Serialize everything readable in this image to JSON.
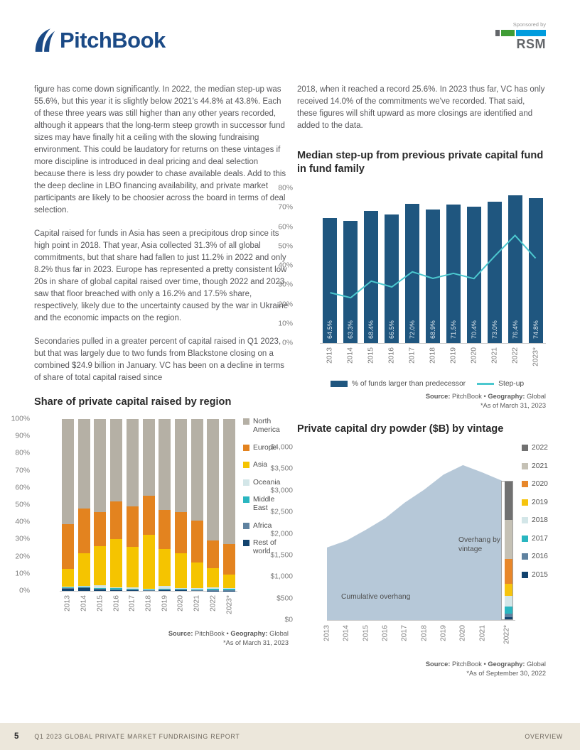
{
  "header": {
    "logo_text": "PitchBook",
    "sponsored_by": "Sponsored by",
    "sponsor_name": "RSM"
  },
  "body": {
    "left_paragraphs": [
      "figure has come down significantly. In 2022, the median step-up was 55.6%, but this year it is slightly below 2021’s 44.8% at 43.8%. Each of these three years was still higher than any other years recorded, although it appears that the long-term steep growth in successor fund sizes may have finally hit a ceiling with the slowing fundraising environment. This could be laudatory for returns on these vintages if more discipline is introduced in deal pricing and deal selection because there is less dry powder to chase available deals. Add to this the deep decline in LBO financing availability, and private market participants are likely to be choosier across the board in terms of deal selection.",
      "Capital raised for funds in Asia has seen a precipitous drop since its high point in 2018. That year, Asia collected 31.3% of all global commitments, but that share had fallen to just 11.2% in 2022 and only 8.2% thus far in 2023. Europe has represented a pretty consistent low 20s in share of global capital raised over time, though 2022 and 2023 saw that floor breached with only a 16.2% and 17.5% share, respectively, likely due to the uncertainty caused by the war in Ukraine and the economic impacts on the region.",
      "Secondaries pulled in a greater percent of capital raised in Q1 2023, but that was largely due to two funds from Blackstone closing on a combined $24.9 billion in January. VC has been on a decline in terms of share of total capital raised since"
    ],
    "right_paragraph": "2018, when it reached a record 25.6%. In 2023 thus far, VC has only received 14.0% of the commitments we've recorded. That said, these figures will shift upward as more closings are identified and added to the data."
  },
  "chart_data": [
    {
      "type": "bar+line",
      "title": "Median step-up from previous private capital fund in fund family",
      "categories": [
        "2013",
        "2014",
        "2015",
        "2016",
        "2017",
        "2018",
        "2019",
        "2020",
        "2021",
        "2022",
        "2023*"
      ],
      "ylim": [
        0,
        80
      ],
      "yticks": [
        "0%",
        "10%",
        "20%",
        "30%",
        "40%",
        "50%",
        "60%",
        "70%",
        "80%"
      ],
      "bar_series": {
        "name": "% of funds larger than predecessor",
        "color": "#1f567f",
        "values": [
          64.5,
          63.3,
          68.4,
          66.5,
          72.0,
          68.9,
          71.5,
          70.4,
          73.0,
          76.4,
          74.8
        ],
        "labels": [
          "64.5%",
          "63.3%",
          "68.4%",
          "66.5%",
          "72.0%",
          "68.9%",
          "71.5%",
          "70.4%",
          "73.0%",
          "76.4%",
          "74.8%"
        ]
      },
      "line_series": {
        "name": "Step-up",
        "color": "#4cc8cf",
        "values": [
          26.0,
          23.4,
          32.0,
          29.0,
          36.8,
          33.4,
          36.0,
          33.3,
          44.8,
          55.6,
          43.8
        ]
      },
      "source": {
        "label": "Source:",
        "name": "PitchBook",
        "bullet": "•",
        "geo_label": "Geography:",
        "geo": "Global",
        "asof": "*As of March 31, 2023"
      }
    },
    {
      "type": "stacked-bar",
      "title": "Share of private capital raised by region",
      "categories": [
        "2013",
        "2014",
        "2015",
        "2016",
        "2017",
        "2018",
        "2019",
        "2020",
        "2021",
        "2022",
        "2023*"
      ],
      "ylim": [
        0,
        100
      ],
      "yticks": [
        "0%",
        "10%",
        "20%",
        "30%",
        "40%",
        "50%",
        "60%",
        "70%",
        "80%",
        "90%",
        "100%"
      ],
      "series": [
        {
          "name": "Rest of world",
          "color": "#12436e",
          "values": [
            1.5,
            1.8,
            1.0,
            0.6,
            0.4,
            0.3,
            0.5,
            0.6,
            0.3,
            0.2,
            0.2
          ]
        },
        {
          "name": "Africa",
          "color": "#5f82a0",
          "values": [
            0.3,
            0.3,
            0.3,
            0.3,
            0.3,
            0.2,
            0.4,
            0.3,
            0.2,
            0.2,
            0.2
          ]
        },
        {
          "name": "Middle East",
          "color": "#2ab6c0",
          "values": [
            0.4,
            0.5,
            0.4,
            0.8,
            0.6,
            0.4,
            0.5,
            0.5,
            0.4,
            1.0,
            0.8
          ]
        },
        {
          "name": "Oceania",
          "color": "#d3e6e8",
          "values": [
            0.4,
            0.4,
            1.5,
            0.5,
            0.7,
            0.5,
            1.6,
            0.4,
            0.8,
            0.6,
            0.3
          ]
        },
        {
          "name": "Asia",
          "color": "#f5c400",
          "values": [
            10.4,
            19.0,
            22.8,
            27.8,
            23.5,
            31.3,
            21.5,
            20.2,
            14.8,
            11.2,
            8.2
          ]
        },
        {
          "name": "Europe",
          "color": "#e3831f",
          "values": [
            26.0,
            26.0,
            20.0,
            22.0,
            23.5,
            22.8,
            22.5,
            24.0,
            24.5,
            16.2,
            17.5
          ]
        },
        {
          "name": "North America",
          "color": "#b5b0a5",
          "values": [
            61.0,
            52.0,
            54.0,
            48.0,
            51.0,
            44.5,
            53.0,
            54.0,
            59.0,
            70.6,
            72.8
          ]
        }
      ],
      "source": {
        "label": "Source:",
        "name": "PitchBook",
        "bullet": "•",
        "geo_label": "Geography:",
        "geo": "Global",
        "asof": "*As of March 31, 2023"
      }
    },
    {
      "type": "area+stacked-bar",
      "title": "Private capital dry powder ($B) by vintage",
      "categories": [
        "2013",
        "2014",
        "2015",
        "2016",
        "2017",
        "2018",
        "2019",
        "2020",
        "2021",
        "2022*"
      ],
      "ylim": [
        0,
        4000
      ],
      "yticks": [
        "$0",
        "$500",
        "$1,000",
        "$1,500",
        "$2,000",
        "$2,500",
        "$3,000",
        "$3,500",
        "$4,000"
      ],
      "area_series": {
        "name": "Cumulative overhang",
        "color": "#b6c8d8",
        "values": [
          1680,
          1840,
          2090,
          2360,
          2720,
          3020,
          3370,
          3590,
          3420,
          3230
        ]
      },
      "bar_series": {
        "name": "Overhang by vintage",
        "position": "2022*",
        "segments": [
          {
            "name": "2015",
            "color": "#12436e",
            "value": 50
          },
          {
            "name": "2016",
            "color": "#5f82a0",
            "value": 85
          },
          {
            "name": "2017",
            "color": "#2ab6c0",
            "value": 160
          },
          {
            "name": "2018",
            "color": "#d3e6e8",
            "value": 250
          },
          {
            "name": "2019",
            "color": "#f6c40e",
            "value": 280
          },
          {
            "name": "2020",
            "color": "#e8872a",
            "value": 585
          },
          {
            "name": "2021",
            "color": "#c5c1b5",
            "value": 920
          },
          {
            "name": "2022",
            "color": "#717171",
            "value": 900
          }
        ]
      },
      "annotations": {
        "cumulative": "Cumulative overhang",
        "by_vintage": "Overhang by vintage"
      },
      "source": {
        "label": "Source:",
        "name": "PitchBook",
        "bullet": "•",
        "geo_label": "Geography:",
        "geo": "Global",
        "asof": "*As of September 30, 2022"
      }
    }
  ],
  "footer": {
    "page_number": "5",
    "report_title": "Q1 2023 GLOBAL PRIVATE MARKET FUNDRAISING REPORT",
    "section": "OVERVIEW"
  }
}
